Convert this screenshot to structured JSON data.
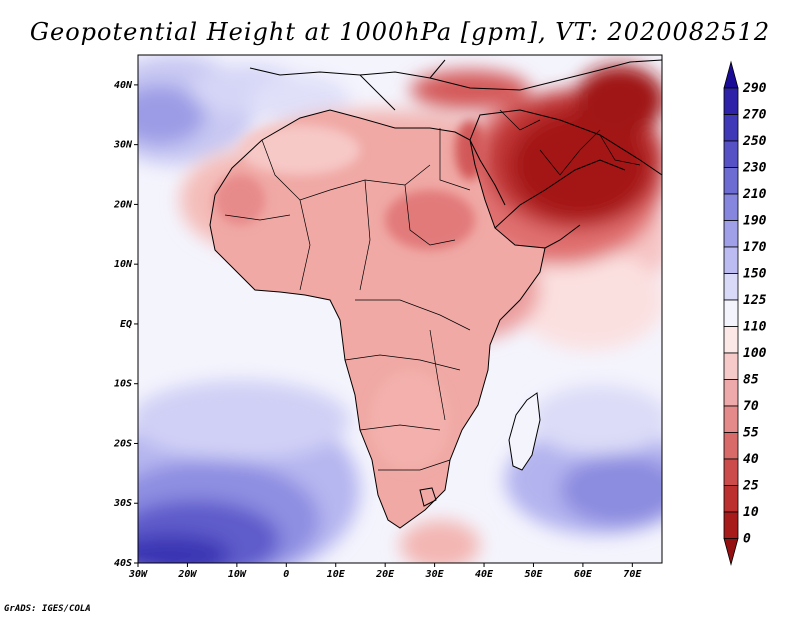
{
  "title": "Geopotential Height at 1000hPa [gpm], VT: 2020082512",
  "credit": "GrADS: IGES/COLA",
  "map": {
    "lon_range": [
      -30,
      76
    ],
    "lat_range": [
      -40,
      45
    ],
    "lat_ticks": [
      {
        "value": 40,
        "label": "40N"
      },
      {
        "value": 30,
        "label": "30N"
      },
      {
        "value": 20,
        "label": "20N"
      },
      {
        "value": 10,
        "label": "10N"
      },
      {
        "value": 0,
        "label": "EQ"
      },
      {
        "value": -10,
        "label": "10S"
      },
      {
        "value": -20,
        "label": "20S"
      },
      {
        "value": -30,
        "label": "30S"
      },
      {
        "value": -40,
        "label": "40S"
      }
    ],
    "lon_ticks": [
      {
        "value": -30,
        "label": "30W"
      },
      {
        "value": -20,
        "label": "20W"
      },
      {
        "value": -10,
        "label": "10W"
      },
      {
        "value": 0,
        "label": "0"
      },
      {
        "value": 10,
        "label": "10E"
      },
      {
        "value": 20,
        "label": "20E"
      },
      {
        "value": 30,
        "label": "30E"
      },
      {
        "value": 40,
        "label": "40E"
      },
      {
        "value": 50,
        "label": "50E"
      },
      {
        "value": 60,
        "label": "60E"
      },
      {
        "value": 70,
        "label": "70E"
      }
    ]
  },
  "colorbar": {
    "labels": [
      "290",
      "270",
      "250",
      "230",
      "210",
      "190",
      "170",
      "150",
      "125",
      "110",
      "100",
      "85",
      "70",
      "55",
      "40",
      "25",
      "10",
      "0"
    ],
    "colors": [
      "#1b0c98",
      "#2e22a8",
      "#3f38b7",
      "#5652c6",
      "#6d6cd3",
      "#8686df",
      "#a0a0e9",
      "#bcbcf2",
      "#d9d9f8",
      "#f4f4fd",
      "#fde8e8",
      "#f7caca",
      "#eeaaaa",
      "#e48a8a",
      "#d96a6a",
      "#cc4c4c",
      "#bd3030",
      "#a81b1b",
      "#951010"
    ]
  },
  "palette": {
    "land_base": "#f3b6b2",
    "ocean_base": "#f4f4fd"
  }
}
